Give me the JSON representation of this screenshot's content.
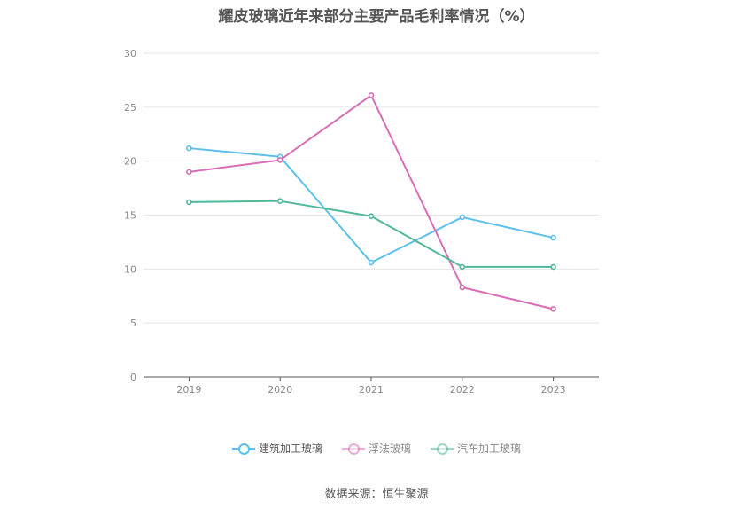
{
  "chart_data": {
    "type": "line",
    "title": "耀皮玻璃近年来部分主要产品毛利率情况（%）",
    "categories": [
      "2019",
      "2020",
      "2021",
      "2022",
      "2023"
    ],
    "ylim": [
      0,
      30
    ],
    "yticks": [
      0,
      5,
      10,
      15,
      20,
      25,
      30
    ],
    "grid": true,
    "legend_position": "bottom",
    "series": [
      {
        "name": "建筑加工玻璃",
        "color": "#5bc0eb",
        "values": [
          21.2,
          20.4,
          10.6,
          14.8,
          12.9
        ]
      },
      {
        "name": "浮法玻璃",
        "color": "#d86eb5",
        "values": [
          19.0,
          20.1,
          26.1,
          8.3,
          6.3
        ]
      },
      {
        "name": "汽车加工玻璃",
        "color": "#4fb79a",
        "values": [
          16.2,
          16.3,
          14.9,
          10.2,
          10.2
        ]
      }
    ]
  },
  "source_text": "数据来源：恒生聚源"
}
